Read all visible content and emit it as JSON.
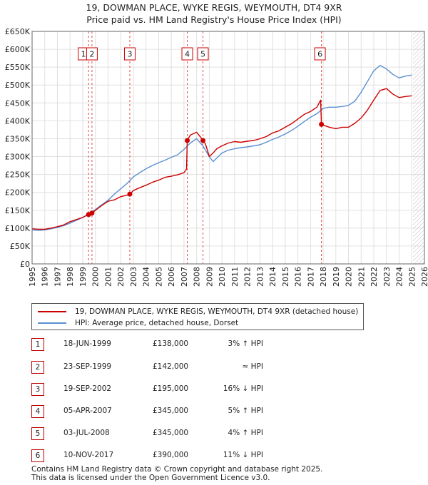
{
  "title_line1": "19, DOWMAN PLACE, WYKE REGIS, WEYMOUTH, DT4 9XR",
  "title_line2": "Price paid vs. HM Land Registry's House Price Index (HPI)",
  "chart_data": {
    "type": "line",
    "xlim": [
      1995,
      2026
    ],
    "ylim": [
      0,
      650000
    ],
    "y_ticks": [
      0,
      50000,
      100000,
      150000,
      200000,
      250000,
      300000,
      350000,
      400000,
      450000,
      500000,
      550000,
      600000,
      650000
    ],
    "y_tick_labels": [
      "£0",
      "£50K",
      "£100K",
      "£150K",
      "£200K",
      "£250K",
      "£300K",
      "£350K",
      "£400K",
      "£450K",
      "£500K",
      "£550K",
      "£600K",
      "£650K"
    ],
    "x_ticks": [
      1995,
      1996,
      1997,
      1998,
      1999,
      2000,
      2001,
      2002,
      2003,
      2004,
      2005,
      2006,
      2007,
      2008,
      2009,
      2010,
      2011,
      2012,
      2013,
      2014,
      2015,
      2016,
      2017,
      2018,
      2019,
      2020,
      2021,
      2022,
      2023,
      2024,
      2025,
      2026
    ],
    "grid": true,
    "forecast_from": 2025.1,
    "series": [
      {
        "name": "19, DOWMAN PLACE, WYKE REGIS, WEYMOUTH, DT4 9XR (detached house)",
        "color": "#cc0000",
        "x": [
          1995.0,
          1995.5,
          1996.0,
          1996.5,
          1997.0,
          1997.5,
          1998.0,
          1998.5,
          1999.0,
          1999.46,
          1999.5,
          1999.73,
          2000.0,
          2000.5,
          2001.0,
          2001.5,
          2002.0,
          2002.5,
          2002.72,
          2003.0,
          2003.5,
          2004.0,
          2004.5,
          2005.0,
          2005.5,
          2006.0,
          2006.5,
          2007.0,
          2007.2,
          2007.26,
          2007.5,
          2008.0,
          2008.3,
          2008.5,
          2008.7,
          2009.0,
          2009.3,
          2009.6,
          2010.0,
          2010.5,
          2011.0,
          2011.5,
          2012.0,
          2012.5,
          2013.0,
          2013.5,
          2014.0,
          2014.5,
          2015.0,
          2015.5,
          2016.0,
          2016.5,
          2017.0,
          2017.5,
          2017.8,
          2017.86,
          2018.0,
          2018.5,
          2019.0,
          2019.5,
          2020.0,
          2020.5,
          2021.0,
          2021.5,
          2022.0,
          2022.5,
          2023.0,
          2023.5,
          2024.0,
          2024.5,
          2025.0
        ],
        "values": [
          98000,
          97000,
          97000,
          100000,
          104000,
          109000,
          118000,
          124000,
          130000,
          138000,
          138000,
          142000,
          150000,
          163000,
          175000,
          179000,
          188000,
          192000,
          195000,
          205000,
          213000,
          220000,
          228000,
          234000,
          242000,
          245000,
          249000,
          255000,
          265000,
          345000,
          360000,
          368000,
          355000,
          345000,
          335000,
          300000,
          310000,
          322000,
          330000,
          338000,
          342000,
          340000,
          343000,
          345000,
          350000,
          356000,
          366000,
          372000,
          382000,
          392000,
          405000,
          418000,
          426000,
          438000,
          458000,
          390000,
          388000,
          382000,
          378000,
          382000,
          382000,
          393000,
          408000,
          430000,
          458000,
          485000,
          490000,
          475000,
          465000,
          468000,
          470000
        ]
      },
      {
        "name": "HPI: Average price, detached house, Dorset",
        "color": "#5b8fd1",
        "x": [
          1995.0,
          1995.5,
          1996.0,
          1996.5,
          1997.0,
          1997.5,
          1998.0,
          1998.5,
          1999.0,
          1999.5,
          2000.0,
          2000.5,
          2001.0,
          2001.5,
          2002.0,
          2002.5,
          2003.0,
          2003.5,
          2004.0,
          2004.5,
          2005.0,
          2005.5,
          2006.0,
          2006.5,
          2007.0,
          2007.5,
          2008.0,
          2008.5,
          2009.0,
          2009.3,
          2009.6,
          2010.0,
          2010.5,
          2011.0,
          2011.5,
          2012.0,
          2012.5,
          2013.0,
          2013.5,
          2014.0,
          2014.5,
          2015.0,
          2015.5,
          2016.0,
          2016.5,
          2017.0,
          2017.5,
          2017.86,
          2018.0,
          2018.5,
          2019.0,
          2019.5,
          2020.0,
          2020.5,
          2021.0,
          2021.5,
          2022.0,
          2022.5,
          2023.0,
          2023.5,
          2024.0,
          2024.5,
          2025.0
        ],
        "values": [
          95000,
          94000,
          95000,
          98000,
          102000,
          107000,
          114000,
          122000,
          130000,
          140000,
          152000,
          165000,
          178000,
          195000,
          210000,
          225000,
          243000,
          255000,
          266000,
          275000,
          283000,
          290000,
          298000,
          305000,
          320000,
          338000,
          350000,
          330000,
          300000,
          286000,
          296000,
          310000,
          318000,
          322000,
          325000,
          327000,
          330000,
          333000,
          340000,
          348000,
          355000,
          363000,
          373000,
          385000,
          398000,
          410000,
          420000,
          430000,
          435000,
          438000,
          438000,
          440000,
          443000,
          455000,
          480000,
          510000,
          540000,
          555000,
          545000,
          530000,
          520000,
          525000,
          528000
        ]
      }
    ],
    "sale_markers": [
      {
        "label": "1",
        "x": 1999.46,
        "price": 138000
      },
      {
        "label": "2",
        "x": 1999.73,
        "price": 142000
      },
      {
        "label": "3",
        "x": 2002.72,
        "price": 195000
      },
      {
        "label": "4",
        "x": 2007.26,
        "price": 345000
      },
      {
        "label": "5",
        "x": 2008.5,
        "price": 345000
      },
      {
        "label": "6",
        "x": 2017.86,
        "price": 390000
      }
    ]
  },
  "legend": {
    "property": "19, DOWMAN PLACE, WYKE REGIS, WEYMOUTH, DT4 9XR (detached house)",
    "hpi": "HPI: Average price, detached house, Dorset"
  },
  "sales": [
    {
      "num": "1",
      "date": "18-JUN-1999",
      "price": "£138,000",
      "hpi": "3% ↑ HPI"
    },
    {
      "num": "2",
      "date": "23-SEP-1999",
      "price": "£142,000",
      "hpi": "≈ HPI"
    },
    {
      "num": "3",
      "date": "19-SEP-2002",
      "price": "£195,000",
      "hpi": "16% ↓ HPI"
    },
    {
      "num": "4",
      "date": "05-APR-2007",
      "price": "£345,000",
      "hpi": "5% ↑ HPI"
    },
    {
      "num": "5",
      "date": "03-JUL-2008",
      "price": "£345,000",
      "hpi": "4% ↑ HPI"
    },
    {
      "num": "6",
      "date": "10-NOV-2017",
      "price": "£390,000",
      "hpi": "11% ↓ HPI"
    }
  ],
  "footer_line1": "Contains HM Land Registry data © Crown copyright and database right 2025.",
  "footer_line2": "This data is licensed under the Open Government Licence v3.0.",
  "colors": {
    "property": "#cc0000",
    "hpi": "#5b8fd1",
    "grid": "#e0e0e0",
    "marker_border": "#cc0000"
  }
}
